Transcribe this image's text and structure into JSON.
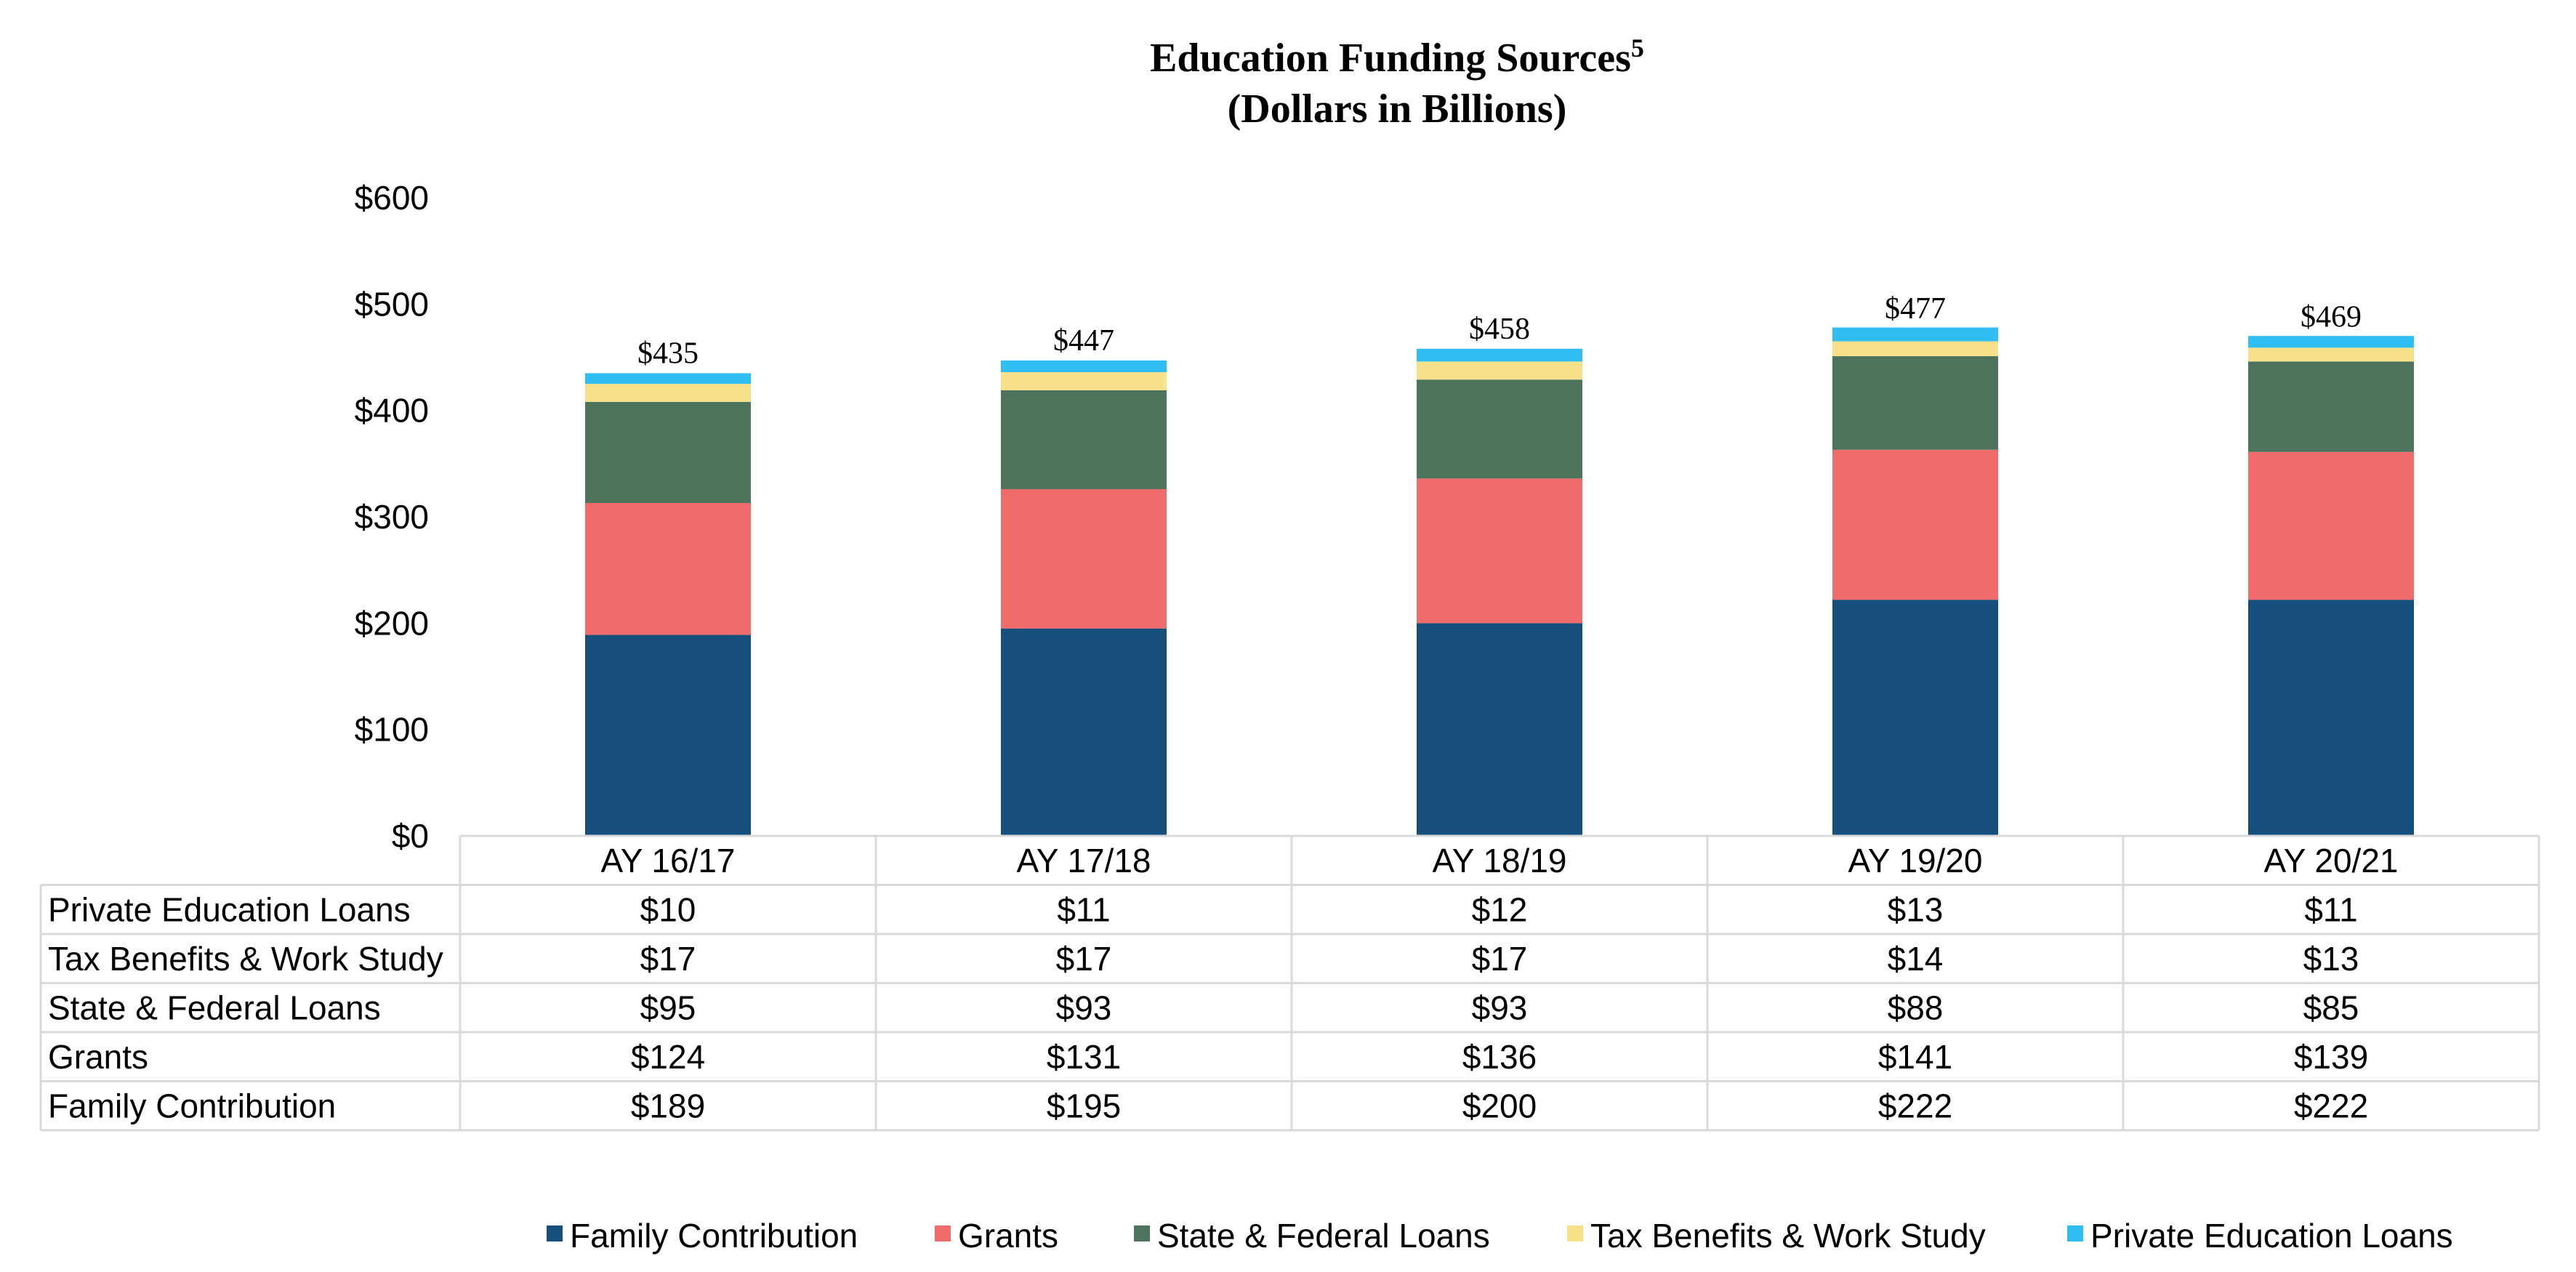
{
  "chart_data": {
    "type": "bar",
    "stacked": true,
    "title": "Education Funding Sources",
    "title_superscript": "5",
    "subtitle": "(Dollars in Billions)",
    "categories": [
      "AY 16/17",
      "AY 17/18",
      "AY 18/19",
      "AY 19/20",
      "AY 20/21"
    ],
    "y_ticks": [
      "$0",
      "$100",
      "$200",
      "$300",
      "$400",
      "$500",
      "$600"
    ],
    "ylim": [
      0,
      600
    ],
    "grid": false,
    "legend_position": "bottom",
    "totals": [
      435,
      447,
      458,
      477,
      469
    ],
    "total_labels": [
      "$435",
      "$447",
      "$458",
      "$477",
      "$469"
    ],
    "series": [
      {
        "name": "Family Contribution",
        "color": "#174f7c",
        "values": [
          189,
          195,
          200,
          222,
          222
        ],
        "labels": [
          "$189",
          "$195",
          "$200",
          "$222",
          "$222"
        ]
      },
      {
        "name": "Grants",
        "color": "#f06c6a",
        "values": [
          124,
          131,
          136,
          141,
          139
        ],
        "labels": [
          "$124",
          "$131",
          "$136",
          "$141",
          "$139"
        ]
      },
      {
        "name": "State & Federal Loans",
        "color": "#4e735c",
        "values": [
          95,
          93,
          93,
          88,
          85
        ],
        "labels": [
          "$95",
          "$93",
          "$93",
          "$88",
          "$85"
        ]
      },
      {
        "name": "Tax Benefits & Work Study",
        "color": "#f7e08a",
        "values": [
          17,
          17,
          17,
          14,
          13
        ],
        "labels": [
          "$17",
          "$17",
          "$17",
          "$14",
          "$13"
        ]
      },
      {
        "name": "Private Education Loans",
        "color": "#2fbdf2",
        "values": [
          10,
          11,
          12,
          13,
          11
        ],
        "labels": [
          "$10",
          "$11",
          "$12",
          "$13",
          "$11"
        ]
      }
    ],
    "table_row_order": [
      "Private Education Loans",
      "Tax Benefits & Work Study",
      "State & Federal Loans",
      "Grants",
      "Family Contribution"
    ]
  }
}
